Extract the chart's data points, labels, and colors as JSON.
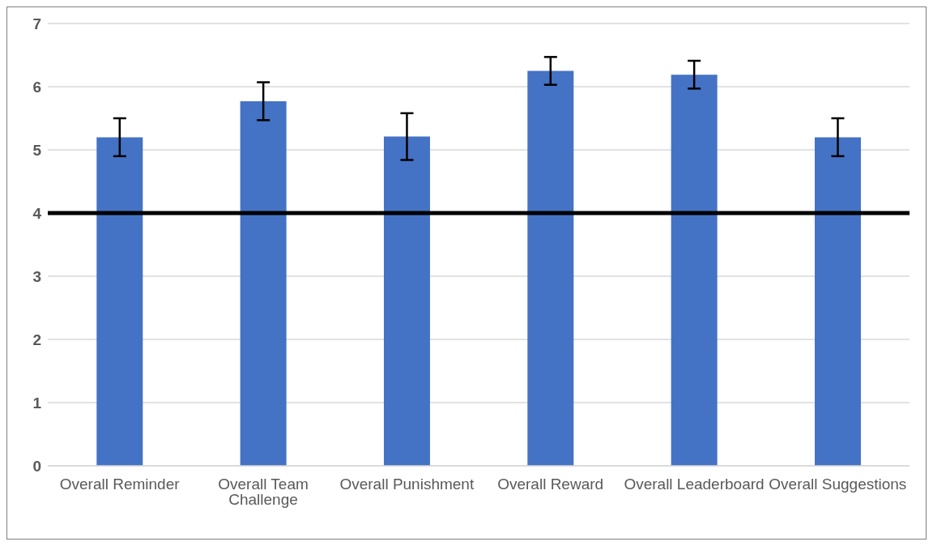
{
  "chart_data": {
    "type": "bar",
    "categories": [
      "Overall Reminder",
      "Overall Team Challenge",
      "Overall Punishment",
      "Overall Reward",
      "Overall Leaderboard",
      "Overall Suggestions"
    ],
    "values": [
      5.2,
      5.77,
      5.21,
      6.25,
      6.19,
      5.2
    ],
    "errors": [
      0.3,
      0.3,
      0.37,
      0.22,
      0.22,
      0.3
    ],
    "color": "#4472c4",
    "ylim": [
      0,
      7
    ],
    "yticks": [
      0,
      1,
      2,
      3,
      4,
      5,
      6,
      7
    ],
    "grid": "y",
    "legend": false,
    "ref_lines": [
      {
        "axis": "y",
        "value": 4,
        "color": "#000000",
        "line_style": "solid"
      }
    ]
  }
}
